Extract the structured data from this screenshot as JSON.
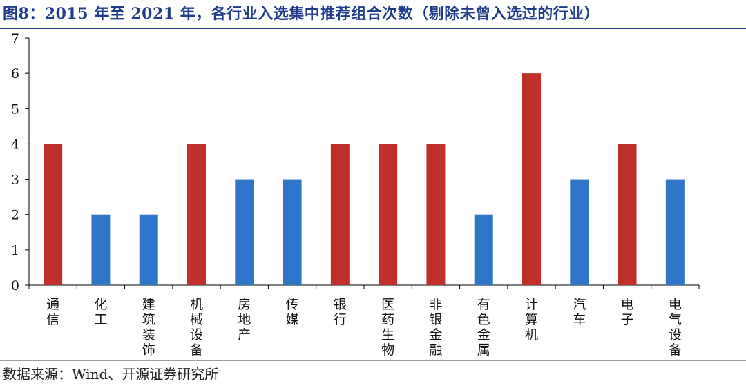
{
  "title": "图8：2015 年至 2021 年，各行业入选集中推荐组合次数（剔除未曾入选过的行业）",
  "source": "数据来源：Wind、开源证券研究所",
  "chart_data": {
    "type": "bar",
    "title": "图8：2015 年至 2021 年，各行业入选集中推荐组合次数（剔除未曾入选过的行业）",
    "xlabel": "",
    "ylabel": "",
    "ylim": [
      0,
      7
    ],
    "yticks": [
      0,
      1,
      2,
      3,
      4,
      5,
      6,
      7
    ],
    "grid": false,
    "legend": "none",
    "categories": [
      "通信",
      "化工",
      "建筑装饰",
      "机械设备",
      "房地产",
      "传媒",
      "银行",
      "医药生物",
      "非银金融",
      "有色金属",
      "计算机",
      "汽车",
      "电子",
      "电气设备"
    ],
    "values": [
      4,
      2,
      2,
      4,
      3,
      3,
      4,
      4,
      4,
      2,
      6,
      3,
      4,
      3
    ],
    "bar_colors": [
      "#c0302a",
      "#2f76c8",
      "#2f76c8",
      "#c0302a",
      "#2f76c8",
      "#2f76c8",
      "#c0302a",
      "#c0302a",
      "#c0302a",
      "#2f76c8",
      "#c0302a",
      "#2f76c8",
      "#c0302a",
      "#2f76c8"
    ]
  }
}
